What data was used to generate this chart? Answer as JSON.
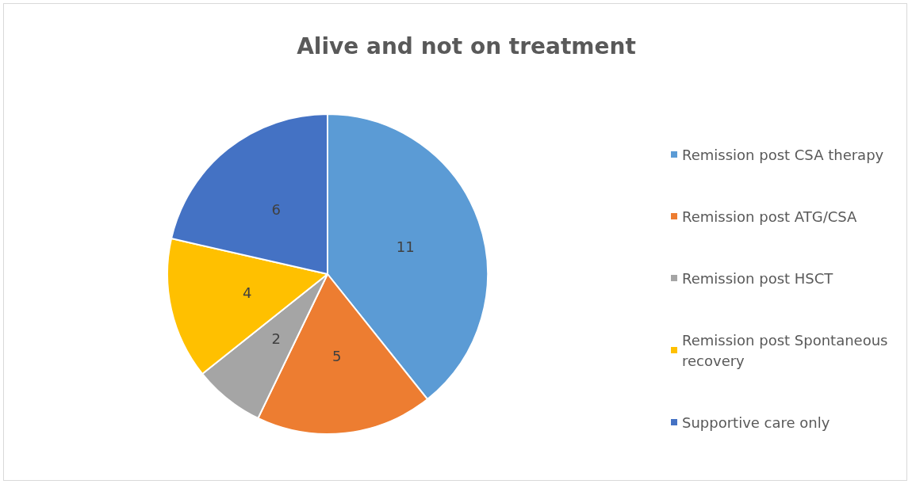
{
  "chart_data": {
    "type": "pie",
    "title": "Alive and not on treatment",
    "categories": [
      "Remission post CSA therapy",
      "Remission post ATG/CSA",
      "Remission post HSCT",
      "Remission post Spontaneous recovery",
      "Supportive care only"
    ],
    "values": [
      11,
      5,
      2,
      4,
      6
    ],
    "colors": [
      "#5b9bd5",
      "#ed7d31",
      "#a5a5a5",
      "#ffc000",
      "#4472c4"
    ],
    "data_labels": true,
    "legend": "right"
  }
}
